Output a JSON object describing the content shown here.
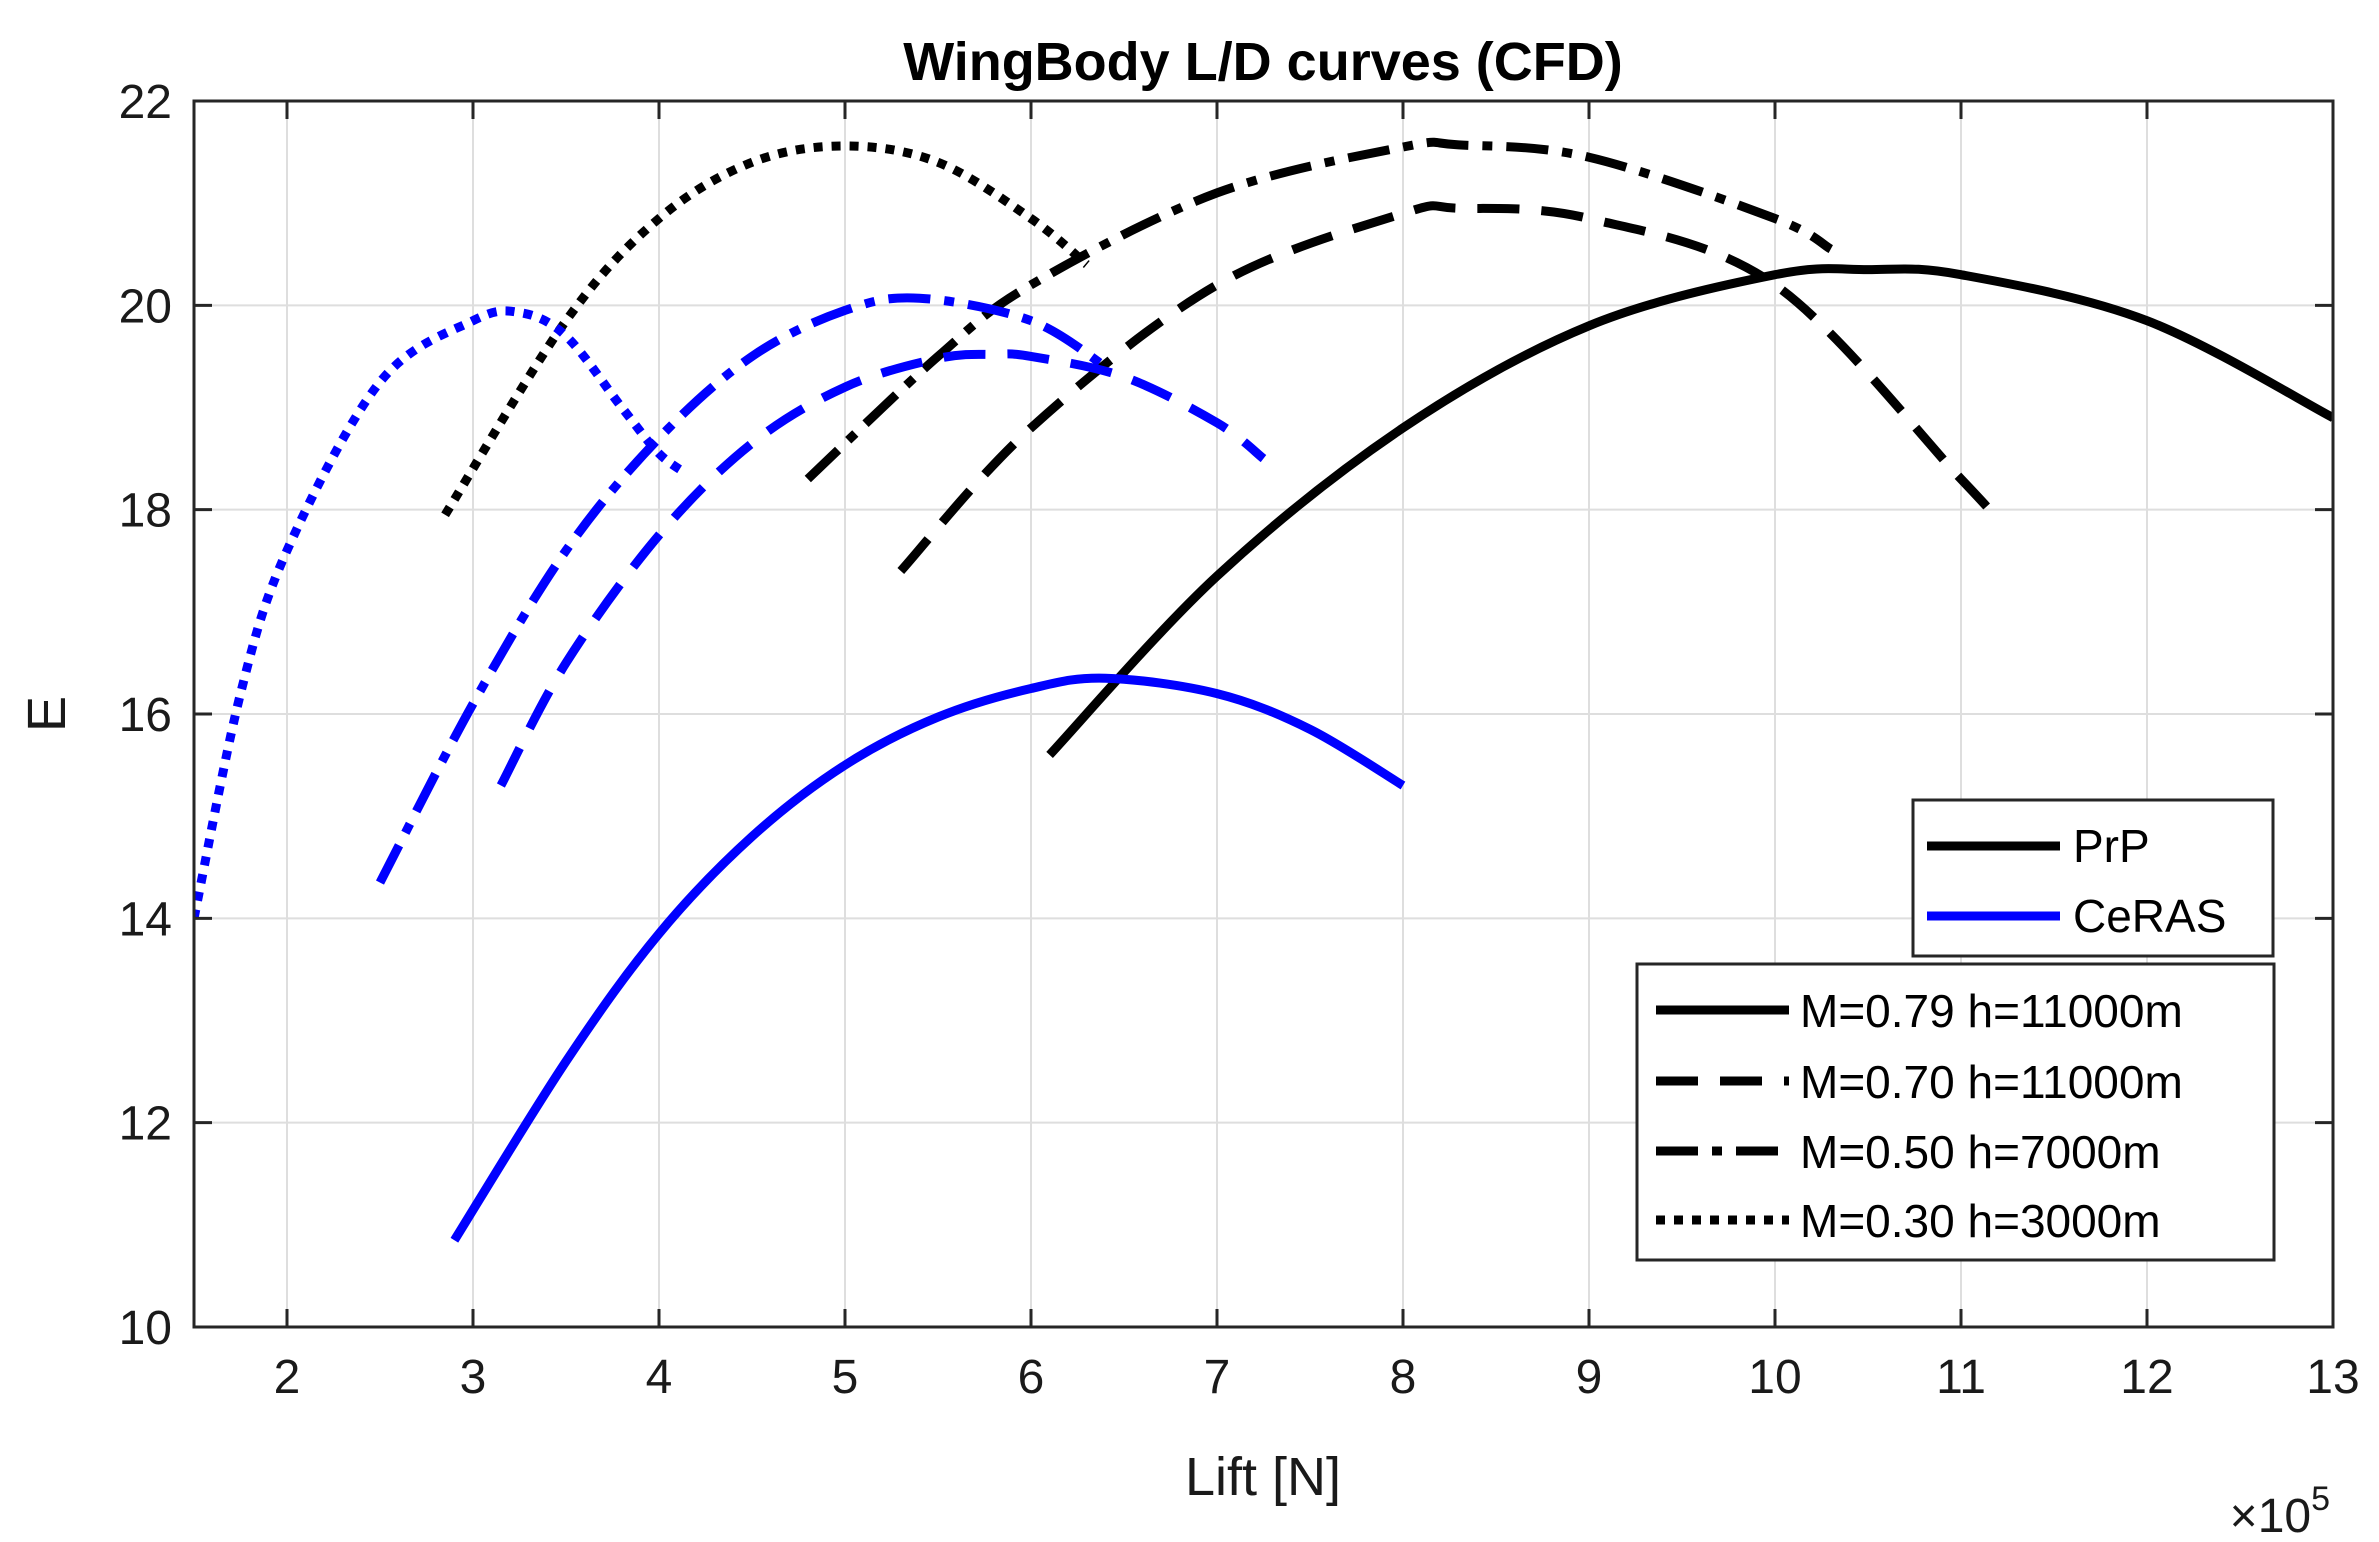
{
  "chart_data": {
    "type": "line",
    "title": "WingBody L/D curves (CFD)",
    "xlabel": "Lift [N]",
    "ylabel": "E",
    "x_exponent_base": "×10",
    "x_exponent_power": "5",
    "xlim": [
      1.5,
      13
    ],
    "ylim": [
      10,
      22
    ],
    "xticks": [
      2,
      3,
      4,
      5,
      6,
      7,
      8,
      9,
      10,
      11,
      12,
      13
    ],
    "yticks": [
      10,
      12,
      14,
      16,
      18,
      20,
      22
    ],
    "grid": true,
    "colors": {
      "PrP": "#000000",
      "CeRAS": "#0000ff"
    },
    "legend_configurations": {
      "placement": "right",
      "entries": [
        {
          "label": "PrP",
          "color": "#000000"
        },
        {
          "label": "CeRAS",
          "color": "#0000ff"
        }
      ]
    },
    "legend_conditions": {
      "placement": "bottom-right",
      "entries": [
        {
          "label": "M=0.79 h=11000m",
          "style": "solid"
        },
        {
          "label": "M=0.70 h=11000m",
          "style": "dashed"
        },
        {
          "label": "M=0.50 h=7000m",
          "style": "dashdot"
        },
        {
          "label": "M=0.30 h=3000m",
          "style": "dotted"
        }
      ]
    },
    "series": [
      {
        "configuration": "PrP",
        "condition": "M=0.79 h=11000m",
        "style": "solid",
        "color": "#000000",
        "x": [
          6.1,
          7.0,
          8.0,
          9.0,
          10.0,
          10.5,
          11.0,
          12.0,
          13.0
        ],
        "y": [
          15.6,
          17.35,
          18.8,
          19.8,
          20.3,
          20.35,
          20.3,
          19.85,
          18.9
        ]
      },
      {
        "configuration": "PrP",
        "condition": "M=0.70 h=11000m",
        "style": "dashed",
        "color": "#000000",
        "x": [
          5.3,
          6.0,
          7.0,
          8.0,
          8.3,
          9.0,
          10.0,
          11.0,
          11.2
        ],
        "y": [
          17.4,
          18.8,
          20.2,
          20.9,
          20.95,
          20.85,
          20.2,
          18.3,
          17.9
        ]
      },
      {
        "configuration": "PrP",
        "condition": "M=0.50 h=7000m",
        "style": "dashdot",
        "color": "#000000",
        "x": [
          4.8,
          5.5,
          6.0,
          7.0,
          8.0,
          8.3,
          9.0,
          10.0,
          10.3
        ],
        "y": [
          18.3,
          19.5,
          20.2,
          21.1,
          21.55,
          21.57,
          21.45,
          20.85,
          20.55
        ]
      },
      {
        "configuration": "PrP",
        "condition": "M=0.30 h=3000m",
        "style": "dotted",
        "color": "#000000",
        "x": [
          2.85,
          3.5,
          4.0,
          4.5,
          5.0,
          5.5,
          6.0,
          6.3
        ],
        "y": [
          17.95,
          19.85,
          20.85,
          21.4,
          21.56,
          21.4,
          20.85,
          20.4
        ]
      },
      {
        "configuration": "CeRAS",
        "condition": "M=0.79 h=11000m",
        "style": "solid",
        "color": "#0000ff",
        "x": [
          2.9,
          3.5,
          4.0,
          4.5,
          5.0,
          5.5,
          6.0,
          6.4,
          7.0,
          7.5,
          8.0
        ],
        "y": [
          10.85,
          12.6,
          13.85,
          14.8,
          15.5,
          15.97,
          16.25,
          16.35,
          16.2,
          15.85,
          15.3
        ]
      },
      {
        "configuration": "CeRAS",
        "condition": "M=0.70 h=11000m",
        "style": "dashed",
        "color": "#0000ff",
        "x": [
          3.15,
          3.5,
          4.0,
          4.5,
          5.0,
          5.5,
          5.8,
          6.0,
          6.5,
          7.0,
          7.25
        ],
        "y": [
          15.3,
          16.5,
          17.75,
          18.65,
          19.2,
          19.48,
          19.52,
          19.5,
          19.3,
          18.85,
          18.5
        ]
      },
      {
        "configuration": "CeRAS",
        "condition": "M=0.50 h=7000m",
        "style": "dashdot",
        "color": "#0000ff",
        "x": [
          2.5,
          3.0,
          3.5,
          4.0,
          4.5,
          5.0,
          5.4,
          6.0,
          6.4
        ],
        "y": [
          14.35,
          16.1,
          17.6,
          18.7,
          19.5,
          19.95,
          20.07,
          19.85,
          19.4
        ]
      },
      {
        "configuration": "CeRAS",
        "condition": "M=0.30 h=3000m",
        "style": "dotted",
        "color": "#0000ff",
        "x": [
          1.5,
          1.75,
          2.0,
          2.5,
          3.0,
          3.25,
          3.5,
          3.8,
          4.0,
          4.15
        ],
        "y": [
          14.0,
          16.2,
          17.6,
          19.25,
          19.85,
          19.93,
          19.7,
          19.0,
          18.55,
          18.35
        ]
      }
    ]
  }
}
